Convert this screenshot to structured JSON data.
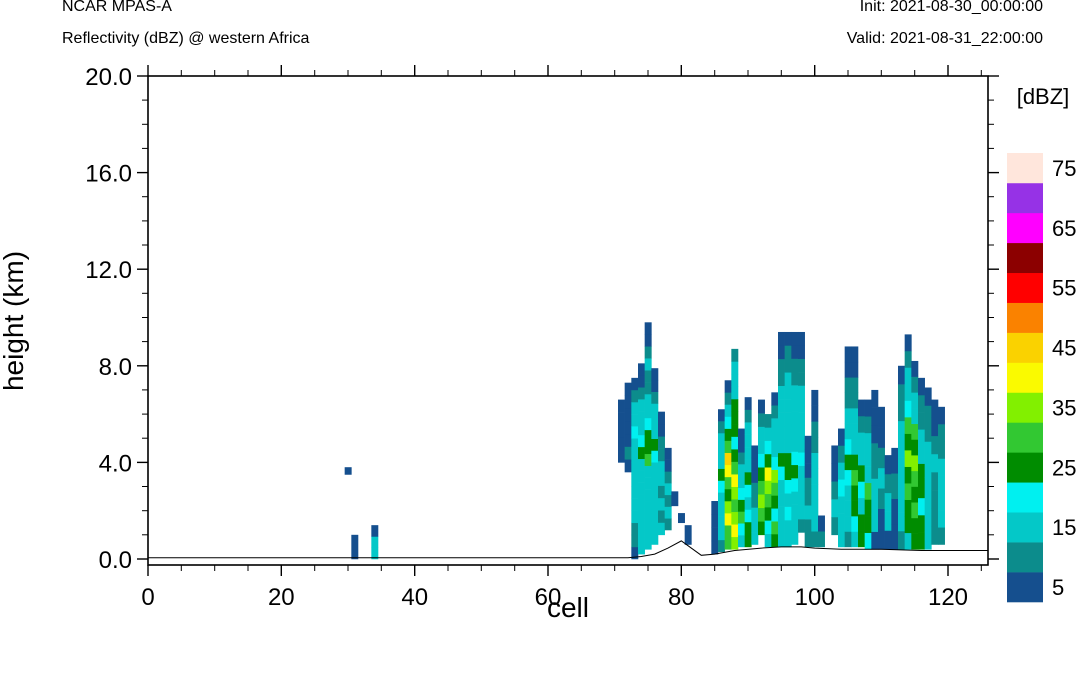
{
  "header": {
    "model": "NCAR MPAS-A",
    "field": "Reflectivity (dBZ) @ western Africa",
    "init": "Init: 2021-08-30_00:00:00",
    "valid": "Valid: 2021-08-31_22:00:00"
  },
  "chart_data": {
    "type": "heatmap",
    "title": "",
    "xlabel": "cell",
    "ylabel": "height (km)",
    "xlim": [
      0,
      126
    ],
    "ylim": [
      -0.25,
      20
    ],
    "x_ticks": [
      "0",
      "20",
      "40",
      "60",
      "80",
      "100",
      "120"
    ],
    "y_ticks": [
      "0.0",
      "4.0",
      "8.0",
      "12.0",
      "16.0",
      "20.0"
    ],
    "x_tick_values": [
      0,
      20,
      40,
      60,
      80,
      100,
      120
    ],
    "y_tick_values": [
      0,
      4,
      8,
      12,
      16,
      20
    ],
    "colorbar": {
      "label": "[dBZ]",
      "levels": [
        5,
        10,
        15,
        20,
        25,
        30,
        35,
        40,
        45,
        50,
        55,
        60,
        65,
        70,
        75
      ],
      "tick_labels": [
        "5",
        "15",
        "25",
        "35",
        "45",
        "55",
        "65",
        "75"
      ],
      "colors": [
        "#154f8e",
        "#0c8c8c",
        "#04c8c8",
        "#00f0f0",
        "#008c00",
        "#32c832",
        "#82f000",
        "#fafa00",
        "#fad200",
        "#fa8200",
        "#ff0000",
        "#8c0000",
        "#ff00ff",
        "#9632e6",
        "#ffe6dc"
      ]
    },
    "terrain": [
      [
        0,
        0.05
      ],
      [
        72,
        0.05
      ],
      [
        74,
        0.1
      ],
      [
        76,
        0.2
      ],
      [
        78,
        0.45
      ],
      [
        80,
        0.75
      ],
      [
        81,
        0.55
      ],
      [
        83,
        0.15
      ],
      [
        85,
        0.2
      ],
      [
        88,
        0.35
      ],
      [
        92,
        0.45
      ],
      [
        95,
        0.5
      ],
      [
        98,
        0.5
      ],
      [
        100,
        0.45
      ],
      [
        104,
        0.4
      ],
      [
        110,
        0.4
      ],
      [
        116,
        0.35
      ],
      [
        120,
        0.35
      ],
      [
        124,
        0.35
      ],
      [
        126,
        0.35
      ]
    ],
    "cells": [
      {
        "x": 30,
        "bot": 3.5,
        "top": 3.8,
        "v": [
          5
        ]
      },
      {
        "x": 31,
        "bot": 0,
        "top": 1.0,
        "v": [
          5
        ]
      },
      {
        "x": 34,
        "bot": 0,
        "top": 1.4,
        "v": [
          15,
          15,
          5
        ]
      },
      {
        "x": 71,
        "bot": 4.0,
        "top": 6.6,
        "v": [
          5,
          5,
          5,
          5,
          5
        ]
      },
      {
        "x": 72,
        "bot": 3.6,
        "top": 7.3,
        "v": [
          5,
          10,
          5,
          5,
          5,
          5,
          5
        ]
      },
      {
        "x": 73,
        "bot": 0,
        "top": 7.5,
        "v": [
          5,
          10,
          10,
          15,
          15,
          15,
          15,
          15,
          15,
          15,
          20,
          15,
          15,
          10,
          5
        ]
      },
      {
        "x": 74,
        "bot": 0.2,
        "top": 8.1,
        "v": [
          15,
          15,
          15,
          15,
          15,
          15,
          15,
          15,
          25,
          20,
          15,
          15,
          15,
          10,
          5,
          5
        ]
      },
      {
        "x": 75,
        "bot": 0.4,
        "top": 9.8,
        "v": [
          15,
          15,
          15,
          15,
          15,
          15,
          15,
          30,
          25,
          25,
          20,
          15,
          15,
          10,
          10,
          15,
          10,
          5,
          5
        ]
      },
      {
        "x": 76,
        "bot": 0.6,
        "top": 7.9,
        "v": [
          15,
          15,
          15,
          15,
          15,
          15,
          15,
          20,
          25,
          15,
          15,
          15,
          10,
          5,
          5
        ]
      },
      {
        "x": 77,
        "bot": 1.0,
        "top": 6.1,
        "v": [
          15,
          10,
          15,
          10,
          15,
          15,
          10,
          10,
          5,
          5
        ]
      },
      {
        "x": 78,
        "bot": 1.2,
        "top": 4.6,
        "v": [
          10,
          15,
          10,
          15,
          10,
          5,
          5
        ]
      },
      {
        "x": 79,
        "bot": 2.2,
        "top": 2.8,
        "v": [
          5
        ]
      },
      {
        "x": 80,
        "bot": 1.5,
        "top": 1.9,
        "v": [
          5
        ]
      },
      {
        "x": 81,
        "bot": 0.6,
        "top": 1.4,
        "v": [
          5
        ]
      },
      {
        "x": 85,
        "bot": 0.2,
        "top": 2.4,
        "v": [
          5,
          5,
          5,
          5
        ]
      },
      {
        "x": 86,
        "bot": 0.3,
        "top": 6.2,
        "v": [
          10,
          15,
          15,
          15,
          15,
          20,
          25,
          15,
          15,
          15,
          10,
          5
        ]
      },
      {
        "x": 87,
        "bot": 0.4,
        "top": 7.4,
        "v": [
          30,
          30,
          40,
          35,
          25,
          30,
          40,
          45,
          30,
          25,
          20,
          15,
          10,
          5
        ]
      },
      {
        "x": 88,
        "bot": 0.4,
        "top": 8.7,
        "v": [
          35,
          40,
          35,
          30,
          35,
          40,
          30,
          25,
          20,
          25,
          25,
          25,
          15,
          15,
          15,
          10
        ]
      },
      {
        "x": 89,
        "bot": 0.5,
        "top": 5.4,
        "v": [
          15,
          20,
          30,
          25,
          20,
          15,
          15,
          10,
          5,
          5
        ]
      },
      {
        "x": 90,
        "bot": 0.5,
        "top": 6.7,
        "v": [
          25,
          25,
          20,
          15,
          20,
          25,
          15,
          15,
          15,
          15,
          10,
          5
        ]
      },
      {
        "x": 91,
        "bot": 0.6,
        "top": 4.7,
        "v": [
          15,
          15,
          15,
          10,
          10,
          5,
          5,
          5
        ]
      },
      {
        "x": 92,
        "bot": 1.0,
        "top": 6.6,
        "v": [
          25,
          30,
          35,
          30,
          25,
          20,
          15,
          15,
          10,
          5
        ]
      },
      {
        "x": 93,
        "bot": 0.5,
        "top": 6.0,
        "v": [
          15,
          20,
          25,
          30,
          35,
          40,
          25,
          20,
          15,
          10
        ]
      },
      {
        "x": 94,
        "bot": 0.5,
        "top": 6.9,
        "v": [
          25,
          30,
          20,
          25,
          30,
          35,
          20,
          15,
          15,
          15,
          10,
          5
        ]
      },
      {
        "x": 95,
        "bot": 0.5,
        "top": 9.4,
        "v": [
          15,
          15,
          15,
          15,
          15,
          20,
          25,
          15,
          15,
          15,
          15,
          15,
          10,
          10,
          5,
          5
        ]
      },
      {
        "x": 96,
        "bot": 0.5,
        "top": 9.4,
        "v": [
          15,
          15,
          20,
          15,
          20,
          25,
          25,
          15,
          15,
          15,
          15,
          15,
          15,
          10,
          10,
          5
        ]
      },
      {
        "x": 97,
        "bot": 0.6,
        "top": 9.4,
        "v": [
          15,
          15,
          15,
          15,
          20,
          25,
          20,
          15,
          15,
          15,
          15,
          15,
          10,
          10,
          5,
          5
        ]
      },
      {
        "x": 98,
        "bot": 1.1,
        "top": 9.4,
        "v": [
          10,
          15,
          15,
          15,
          15,
          20,
          15,
          15,
          15,
          15,
          15,
          10,
          10,
          5,
          5
        ]
      },
      {
        "x": 99,
        "bot": 0.5,
        "top": 5.1,
        "v": [
          10,
          10,
          15,
          10,
          10,
          5,
          5,
          5
        ]
      },
      {
        "x": 100,
        "bot": 0.5,
        "top": 7.0,
        "v": [
          10,
          15,
          15,
          15,
          15,
          15,
          10,
          10,
          5,
          5
        ]
      },
      {
        "x": 101,
        "bot": 0.5,
        "top": 1.8,
        "v": [
          10,
          5
        ]
      },
      {
        "x": 103,
        "bot": 1.0,
        "top": 4.7,
        "v": [
          10,
          15,
          10,
          5,
          5
        ]
      },
      {
        "x": 104,
        "bot": 0.5,
        "top": 5.4,
        "v": [
          15,
          15,
          15,
          20,
          15,
          10,
          5
        ]
      },
      {
        "x": 105,
        "bot": 0.5,
        "top": 8.8,
        "v": [
          10,
          15,
          15,
          15,
          20,
          25,
          20,
          15,
          15,
          10,
          10,
          5,
          5
        ]
      },
      {
        "x": 106,
        "bot": 0.5,
        "top": 8.8,
        "v": [
          15,
          20,
          25,
          25,
          30,
          25,
          15,
          15,
          15,
          10,
          10,
          5,
          5
        ]
      },
      {
        "x": 107,
        "bot": 0.5,
        "top": 6.6,
        "v": [
          25,
          25,
          15,
          20,
          25,
          15,
          15,
          10,
          5
        ]
      },
      {
        "x": 108,
        "bot": 0.4,
        "top": 6.6,
        "v": [
          20,
          25,
          25,
          30,
          15,
          15,
          15,
          10,
          5
        ]
      },
      {
        "x": 109,
        "bot": 0.4,
        "top": 7.0,
        "v": [
          5,
          15,
          15,
          15,
          10,
          10,
          5,
          5,
          5
        ]
      },
      {
        "x": 110,
        "bot": 0.4,
        "top": 6.3,
        "v": [
          5,
          5,
          10,
          15,
          10,
          5,
          5
        ]
      },
      {
        "x": 111,
        "bot": 0.4,
        "top": 4.3,
        "v": [
          5,
          15,
          15,
          10,
          5
        ]
      },
      {
        "x": 112,
        "bot": 0.4,
        "top": 4.6,
        "v": [
          5,
          5,
          10,
          5
        ]
      },
      {
        "x": 113,
        "bot": 0.4,
        "top": 8.0,
        "v": [
          10,
          15,
          15,
          15,
          15,
          15,
          15,
          10,
          10,
          5
        ]
      },
      {
        "x": 114,
        "bot": 0.4,
        "top": 9.3,
        "v": [
          15,
          25,
          25,
          30,
          25,
          35,
          25,
          30,
          20,
          15,
          15,
          10,
          5
        ]
      },
      {
        "x": 115,
        "bot": 0.4,
        "top": 8.2,
        "v": [
          25,
          25,
          30,
          25,
          30,
          35,
          25,
          30,
          15,
          15,
          10,
          5
        ]
      },
      {
        "x": 116,
        "bot": 0.4,
        "top": 7.5,
        "v": [
          25,
          25,
          20,
          25,
          25,
          15,
          15,
          10,
          10,
          5
        ]
      },
      {
        "x": 117,
        "bot": 0.4,
        "top": 7.1,
        "v": [
          15,
          15,
          15,
          15,
          15,
          15,
          10,
          10,
          5
        ]
      },
      {
        "x": 118,
        "bot": 0.6,
        "top": 6.6,
        "v": [
          10,
          10,
          10,
          10,
          15,
          10,
          5,
          5
        ]
      },
      {
        "x": 119,
        "bot": 0.6,
        "top": 6.3,
        "v": [
          10,
          15,
          15,
          15,
          15,
          10,
          10,
          5
        ]
      }
    ]
  }
}
